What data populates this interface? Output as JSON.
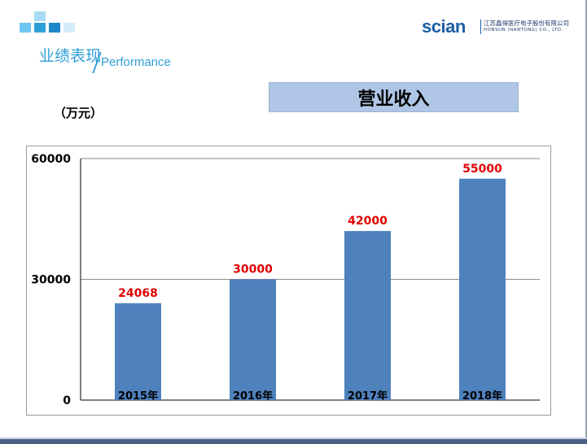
{
  "header": {
    "section_title": "业绩表现",
    "section_subtitle": "Performance",
    "brand_name": "scian",
    "brand_company_cn": "江苏鑫得医疗电子股份有限公司",
    "brand_company_en": "HONSUN (NANTONG) CO., LTD."
  },
  "slide": {
    "title": "营业收入",
    "unit": "（万元）"
  },
  "colors": {
    "bar": "#4f81bd",
    "value_label": "#e00000",
    "title_box": "#afc6e6",
    "accent": "#2f9fd8",
    "logo_squares": [
      "#6fc6ee",
      "#2f9fd8",
      "#a8dcf4",
      "#d3ecf8",
      "#1e88c8"
    ]
  },
  "chart_data": {
    "type": "bar",
    "title": "营业收入",
    "categories": [
      "2015年",
      "2016年",
      "2017年",
      "2018年"
    ],
    "values": [
      24068,
      30000,
      42000,
      55000
    ],
    "value_labels": [
      "24068",
      "30000",
      "42000",
      "55000"
    ],
    "ylim": [
      0,
      60000
    ],
    "yticks": [
      0,
      30000,
      60000
    ],
    "ytick_labels": [
      "0",
      "30000",
      "60000"
    ],
    "xlabel": "",
    "ylabel": "",
    "grid": true,
    "legend": false
  }
}
